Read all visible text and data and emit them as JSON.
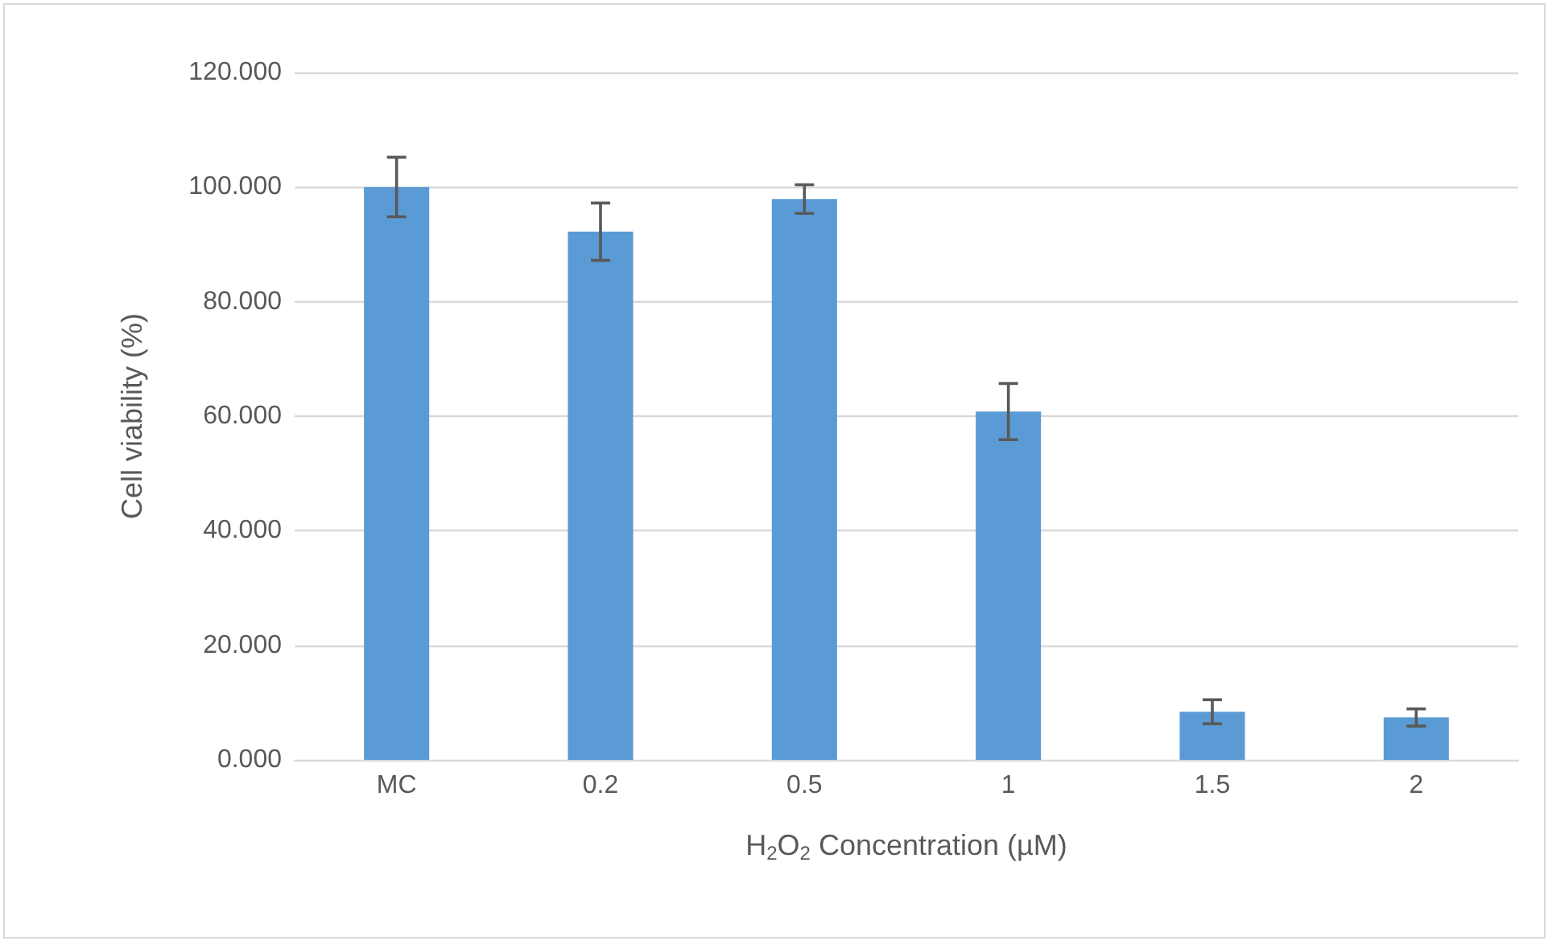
{
  "chart_data": {
    "type": "bar",
    "xlabel": "H$_{2}$O$_{2}$ Concentration (µM)",
    "ylabel": "Cell viability (%)",
    "categories": [
      "MC",
      "0.2",
      "0.5",
      "1",
      "1.5",
      "2"
    ],
    "values": [
      100.0,
      92.2,
      97.9,
      60.8,
      8.4,
      7.4
    ],
    "errors": [
      5.2,
      5.0,
      2.5,
      4.9,
      2.1,
      1.5
    ],
    "color": "#5b9bd5",
    "ylim": [
      0,
      120
    ],
    "yticks": [
      {
        "value": 0,
        "label": "0.000"
      },
      {
        "value": 20,
        "label": "20.000"
      },
      {
        "value": 40,
        "label": "40.000"
      },
      {
        "value": 60,
        "label": "60.000"
      },
      {
        "value": 80,
        "label": "80.000"
      },
      {
        "value": 100,
        "label": "100.000"
      },
      {
        "value": 120,
        "label": "120.000"
      }
    ],
    "grid": "y"
  }
}
